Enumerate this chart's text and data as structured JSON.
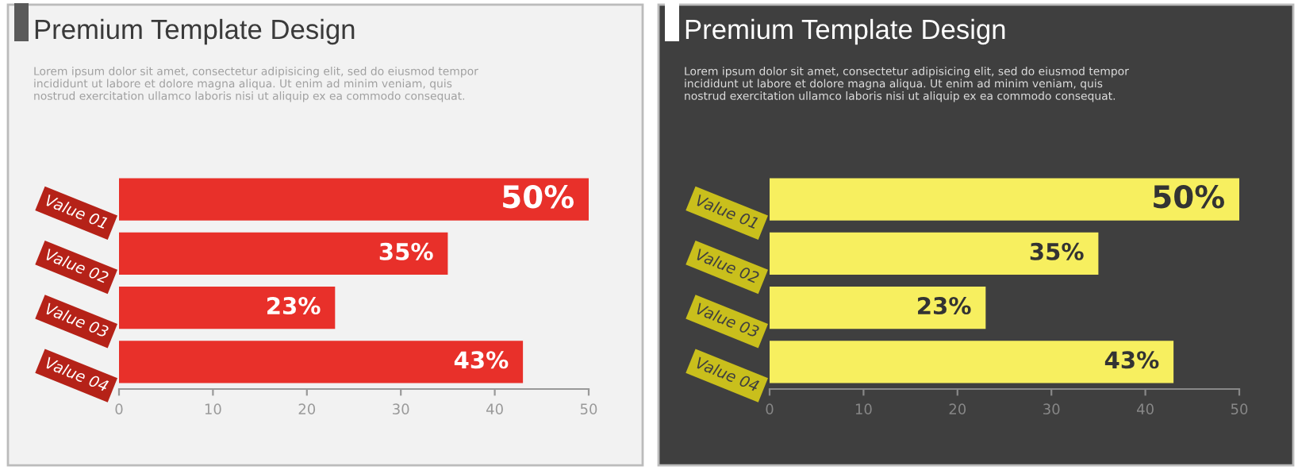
{
  "chart_data": [
    {
      "type": "bar",
      "orientation": "horizontal",
      "title": "Premium Template Design",
      "subtitle": "Lorem ipsum dolor sit amet, consectetur adipisicing elit, sed do eiusmod tempor\nincididunt ut labore et dolore magna aliqua. Ut enim ad minim veniam, quis\nnostrud exercitation ullamco laboris nisi ut aliquip ex ea commodo consequat.",
      "categories": [
        "Value 01",
        "Value 02",
        "Value 03",
        "Value 04"
      ],
      "values": [
        50,
        35,
        23,
        43
      ],
      "value_labels": [
        "50%",
        "35%",
        "23%",
        "43%"
      ],
      "color": "#e8302a",
      "xlim": [
        0,
        50
      ],
      "xticks": [
        0,
        10,
        20,
        30,
        40,
        50
      ],
      "grid": false,
      "legend": false
    },
    {
      "type": "bar",
      "orientation": "horizontal",
      "title": "Premium Template Design",
      "subtitle": "Lorem ipsum dolor sit amet, consectetur adipisicing elit, sed do eiusmod tempor\nincididunt ut labore et dolore magna aliqua. Ut enim ad minim veniam, quis\nnostrud exercitation ullamco laboris nisi ut aliquip ex ea commodo consequat.",
      "categories": [
        "Value 01",
        "Value 02",
        "Value 03",
        "Value 04"
      ],
      "values": [
        50,
        35,
        23,
        43
      ],
      "value_labels": [
        "50%",
        "35%",
        "23%",
        "43%"
      ],
      "color": "#f7ef5f",
      "xlim": [
        0,
        50
      ],
      "xticks": [
        0,
        10,
        20,
        30,
        40,
        50
      ],
      "grid": false,
      "legend": false
    }
  ]
}
